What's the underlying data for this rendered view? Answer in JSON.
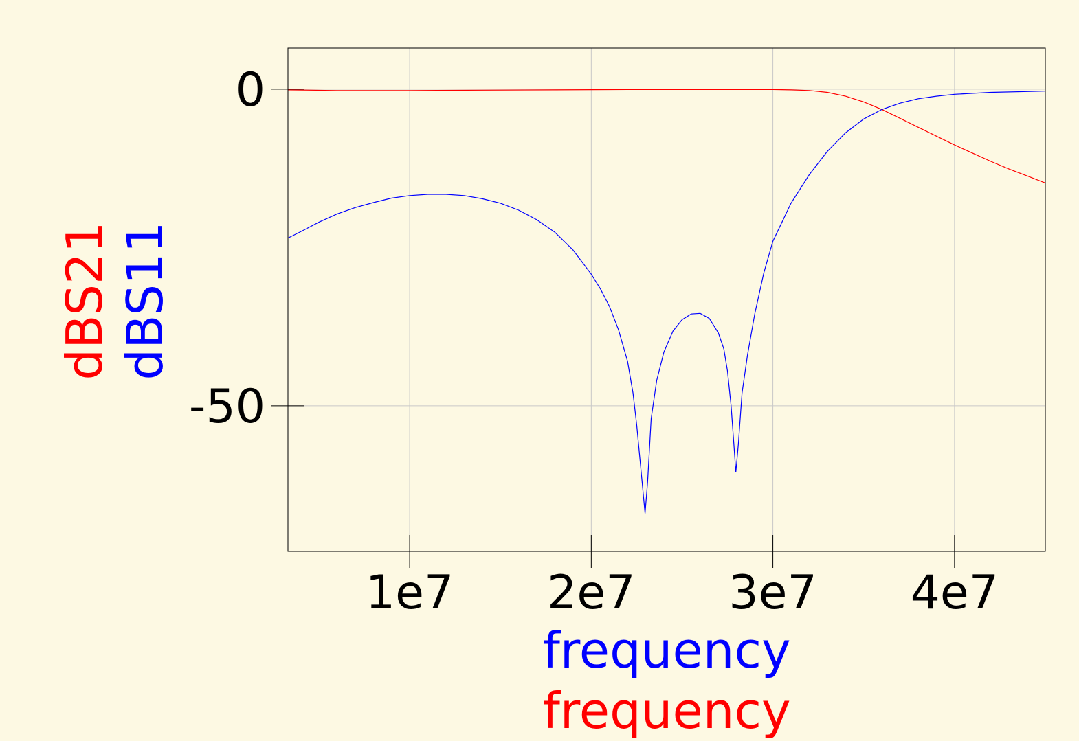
{
  "colors": {
    "background": "#fdf9e3",
    "s21": "#ff0000",
    "s11": "#0000ff",
    "grid": "#c8c8c8"
  },
  "chart_data": {
    "type": "line",
    "title": "",
    "xlabel_lines": [
      "frequency",
      "frequency"
    ],
    "ylabel_lines": [
      "dBS21",
      "dBS11"
    ],
    "xlim": [
      3300000,
      45000000
    ],
    "ylim": [
      -73,
      6.5
    ],
    "x_ticks": [
      {
        "value": 10000000,
        "label": "1e7"
      },
      {
        "value": 20000000,
        "label": "2e7"
      },
      {
        "value": 30000000,
        "label": "3e7"
      },
      {
        "value": 40000000,
        "label": "4e7"
      }
    ],
    "y_ticks": [
      {
        "value": 0,
        "label": "0"
      },
      {
        "value": -50,
        "label": "-50"
      }
    ],
    "grid": true,
    "series": [
      {
        "name": "dBS21",
        "color": "#ff0000",
        "points": [
          [
            3300000,
            -0.1
          ],
          [
            6000000,
            -0.2
          ],
          [
            10000000,
            -0.2
          ],
          [
            14000000,
            -0.15
          ],
          [
            18000000,
            -0.1
          ],
          [
            22000000,
            -0.05
          ],
          [
            26000000,
            -0.05
          ],
          [
            30000000,
            -0.05
          ],
          [
            31000000,
            -0.1
          ],
          [
            32000000,
            -0.2
          ],
          [
            33000000,
            -0.5
          ],
          [
            34000000,
            -1.1
          ],
          [
            35000000,
            -2.0
          ],
          [
            36000000,
            -3.2
          ],
          [
            37000000,
            -4.6
          ],
          [
            38000000,
            -6.0
          ],
          [
            39000000,
            -7.4
          ],
          [
            40000000,
            -8.8
          ],
          [
            41000000,
            -10.1
          ],
          [
            42000000,
            -11.4
          ],
          [
            43000000,
            -12.6
          ],
          [
            44000000,
            -13.7
          ],
          [
            45000000,
            -14.8
          ]
        ]
      },
      {
        "name": "dBS11",
        "color": "#0000ff",
        "points": [
          [
            3300000,
            -23.5
          ],
          [
            4000000,
            -22.5
          ],
          [
            5000000,
            -21.0
          ],
          [
            6000000,
            -19.7
          ],
          [
            7000000,
            -18.7
          ],
          [
            8000000,
            -17.9
          ],
          [
            9000000,
            -17.2
          ],
          [
            10000000,
            -16.8
          ],
          [
            11000000,
            -16.6
          ],
          [
            12000000,
            -16.6
          ],
          [
            13000000,
            -16.8
          ],
          [
            14000000,
            -17.3
          ],
          [
            15000000,
            -18.0
          ],
          [
            16000000,
            -19.1
          ],
          [
            17000000,
            -20.6
          ],
          [
            18000000,
            -22.6
          ],
          [
            19000000,
            -25.4
          ],
          [
            20000000,
            -29.2
          ],
          [
            20500000,
            -31.5
          ],
          [
            21000000,
            -34.3
          ],
          [
            21500000,
            -38.0
          ],
          [
            22000000,
            -43.0
          ],
          [
            22300000,
            -48.0
          ],
          [
            22500000,
            -53.0
          ],
          [
            22800000,
            -62.0
          ],
          [
            22960000,
            -67.0
          ],
          [
            23100000,
            -62.0
          ],
          [
            23300000,
            -52.0
          ],
          [
            23600000,
            -46.0
          ],
          [
            24000000,
            -41.5
          ],
          [
            24500000,
            -38.2
          ],
          [
            25000000,
            -36.4
          ],
          [
            25500000,
            -35.5
          ],
          [
            26000000,
            -35.4
          ],
          [
            26500000,
            -36.2
          ],
          [
            27000000,
            -38.5
          ],
          [
            27300000,
            -41.0
          ],
          [
            27500000,
            -44.5
          ],
          [
            27700000,
            -50.0
          ],
          [
            27850000,
            -56.0
          ],
          [
            27960000,
            -60.5
          ],
          [
            28100000,
            -56.0
          ],
          [
            28300000,
            -48.0
          ],
          [
            28600000,
            -42.0
          ],
          [
            29000000,
            -35.5
          ],
          [
            29500000,
            -29.0
          ],
          [
            30000000,
            -24.0
          ],
          [
            31000000,
            -18.0
          ],
          [
            32000000,
            -13.5
          ],
          [
            33000000,
            -9.8
          ],
          [
            34000000,
            -6.9
          ],
          [
            35000000,
            -4.7
          ],
          [
            36000000,
            -3.2
          ],
          [
            37000000,
            -2.2
          ],
          [
            38000000,
            -1.5
          ],
          [
            39000000,
            -1.1
          ],
          [
            40000000,
            -0.8
          ],
          [
            42000000,
            -0.5
          ],
          [
            45000000,
            -0.3
          ]
        ]
      }
    ]
  }
}
